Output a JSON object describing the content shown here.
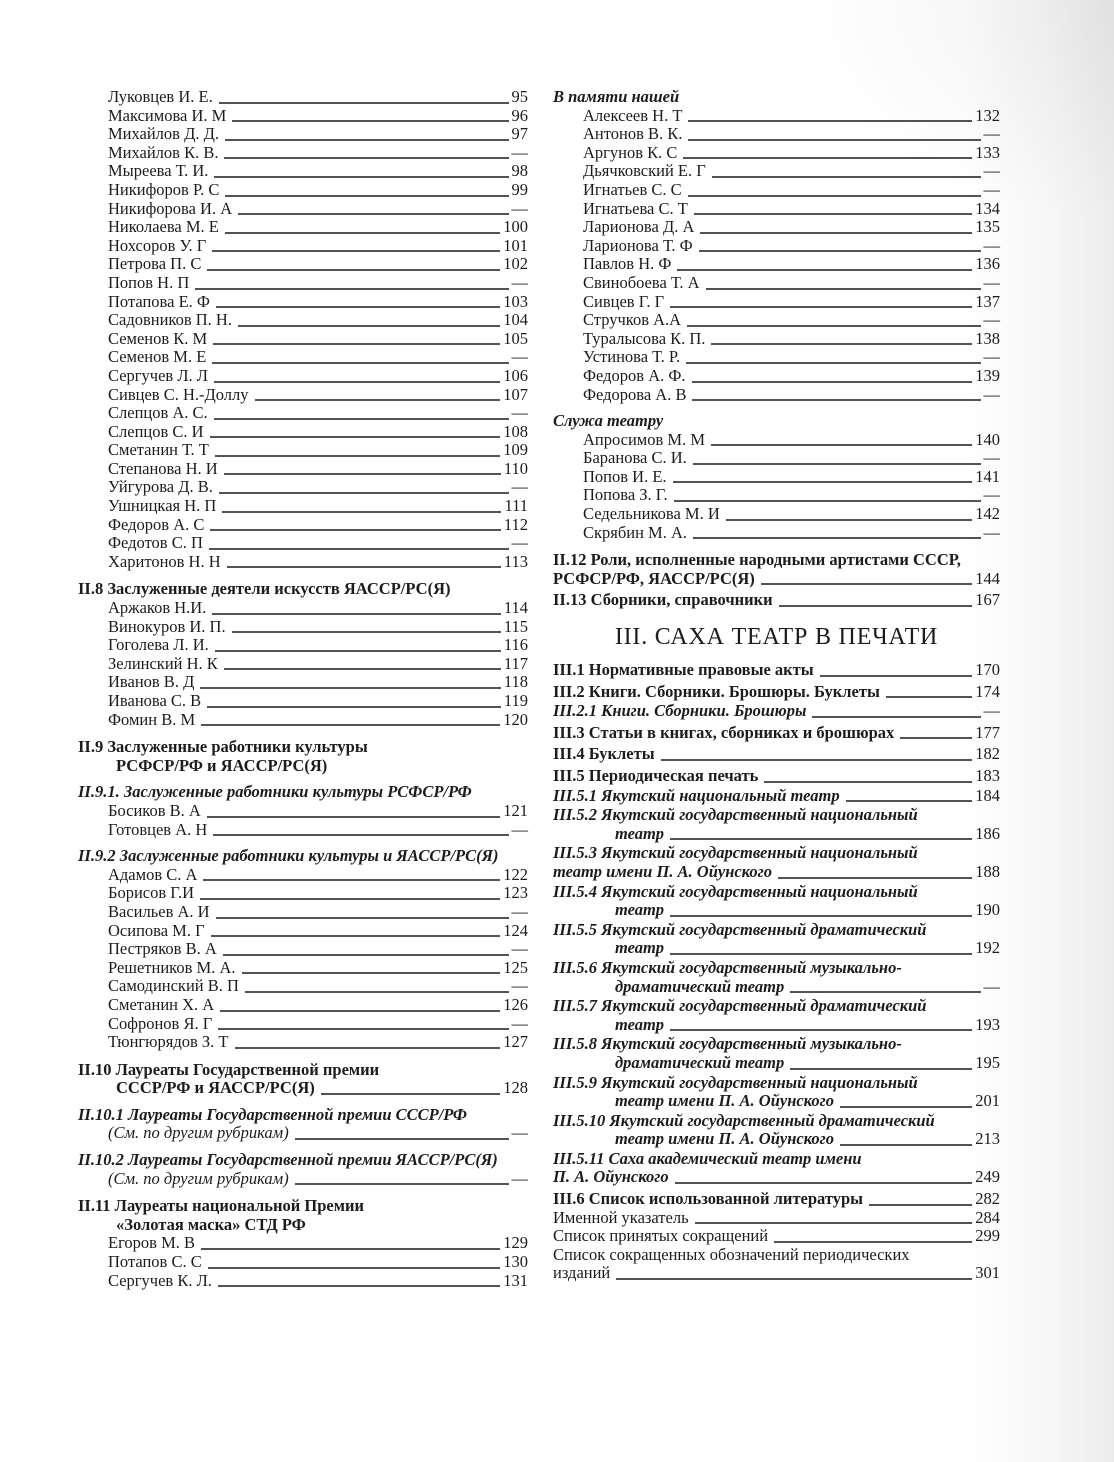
{
  "columns": {
    "left": [
      {
        "t": "Луковцев И. Е.",
        "p": "95",
        "c": "name"
      },
      {
        "t": "Максимова И. М",
        "p": "96",
        "c": "name"
      },
      {
        "t": "Михайлов Д. Д.",
        "p": "97",
        "c": "name"
      },
      {
        "t": "Михайлов К. В.",
        "p": "—",
        "c": "name"
      },
      {
        "t": "Мыреева Т. И.",
        "p": "98",
        "c": "name"
      },
      {
        "t": "Никифоров Р. С",
        "p": "99",
        "c": "name"
      },
      {
        "t": "Никифорова И. А",
        "p": "—",
        "c": "name"
      },
      {
        "t": "Николаева М. Е",
        "p": "100",
        "c": "name"
      },
      {
        "t": "Нохсоров У. Г",
        "p": "101",
        "c": "name"
      },
      {
        "t": "Петрова П. С",
        "p": "102",
        "c": "name"
      },
      {
        "t": "Попов Н. П",
        "p": "—",
        "c": "name"
      },
      {
        "t": "Потапова Е. Ф",
        "p": "103",
        "c": "name"
      },
      {
        "t": "Садовников П. Н.",
        "p": "104",
        "c": "name"
      },
      {
        "t": "Семенов К. М",
        "p": "105",
        "c": "name"
      },
      {
        "t": "Семенов М. Е",
        "p": "—",
        "c": "name"
      },
      {
        "t": "Сергучев Л. Л",
        "p": "106",
        "c": "name"
      },
      {
        "t": "Сивцев С. Н.-Доллу",
        "p": "107",
        "c": "name"
      },
      {
        "t": "Слепцов А. С.",
        "p": "—",
        "c": "name"
      },
      {
        "t": "Слепцов С. И",
        "p": "108",
        "c": "name"
      },
      {
        "t": "Сметанин Т. Т",
        "p": "109",
        "c": "name"
      },
      {
        "t": "Степанова Н. И",
        "p": "110",
        "c": "name"
      },
      {
        "t": "Уйгурова Д. В.",
        "p": "—",
        "c": "name"
      },
      {
        "t": "Ушницкая Н. П",
        "p": "111",
        "c": "name"
      },
      {
        "t": "Федоров А. С",
        "p": "112",
        "c": "name"
      },
      {
        "t": "Федотов С. П",
        "p": "—",
        "c": "name"
      },
      {
        "t": "Харитонов Н. Н",
        "p": "113",
        "c": "name"
      },
      {
        "t": "II.8 Заслуженные деятели искусств ЯАССР/РС(Я)",
        "p": null,
        "c": "heading"
      },
      {
        "t": "Аржаков Н.И.",
        "p": "114",
        "c": "name"
      },
      {
        "t": "Винокуров И. П.",
        "p": "115",
        "c": "name"
      },
      {
        "t": "Гоголева Л. И.",
        "p": "116",
        "c": "name"
      },
      {
        "t": "Зелинский Н. К",
        "p": "117",
        "c": "name"
      },
      {
        "t": "Иванов В. Д",
        "p": "118",
        "c": "name"
      },
      {
        "t": "Иванова С. В",
        "p": "119",
        "c": "name"
      },
      {
        "t": "Фомин В. М",
        "p": "120",
        "c": "name"
      },
      {
        "t": "II.9 Заслуженные работники культуры",
        "p": null,
        "c": "heading"
      },
      {
        "t": "РСФСР/РФ и ЯАССР/РС(Я)",
        "p": null,
        "c": "heading-cont-indent"
      },
      {
        "t": "II.9.1. Заслуженные работники культуры РСФСР/РФ",
        "p": null,
        "c": "heading-italic"
      },
      {
        "t": "Босиков В. А",
        "p": "121",
        "c": "name"
      },
      {
        "t": "Готовцев А. Н",
        "p": "—",
        "c": "name"
      },
      {
        "t": "II.9.2 Заслуженные работники культуры и ЯАССР/РС(Я)",
        "p": null,
        "c": "heading-italic"
      },
      {
        "t": "Адамов С. А",
        "p": "122",
        "c": "name"
      },
      {
        "t": "Борисов Г.И",
        "p": "123",
        "c": "name"
      },
      {
        "t": "Васильев А. И",
        "p": "—",
        "c": "name"
      },
      {
        "t": "Осипова М. Г",
        "p": "124",
        "c": "name"
      },
      {
        "t": "Пестряков В. А",
        "p": "—",
        "c": "name"
      },
      {
        "t": "Решетников М. А.",
        "p": "125",
        "c": "name"
      },
      {
        "t": "Самодинский В. П",
        "p": "—",
        "c": "name"
      },
      {
        "t": "Сметанин Х. А",
        "p": "126",
        "c": "name"
      },
      {
        "t": "Софронов Я. Г",
        "p": "—",
        "c": "name"
      },
      {
        "t": "Тюнгюрядов З. Т",
        "p": "127",
        "c": "name"
      },
      {
        "t": "II.10 Лауреаты Государственной премии",
        "p": null,
        "c": "heading"
      },
      {
        "t": "СССР/РФ и ЯАССР/РС(Я)",
        "p": "128",
        "c": "heading-cont-indent"
      },
      {
        "t": "II.10.1 Лауреаты Государственной премии СССР/РФ",
        "p": null,
        "c": "heading-italic"
      },
      {
        "t": "(См. по другим рубрикам)",
        "p": "—",
        "c": "see-note"
      },
      {
        "t": "II.10.2 Лауреаты Государственной премии ЯАССР/РС(Я)",
        "p": null,
        "c": "heading-italic"
      },
      {
        "t": "(См. по другим рубрикам)",
        "p": "—",
        "c": "see-note"
      },
      {
        "t": "II.11 Лауреаты национальной Премии",
        "p": null,
        "c": "heading"
      },
      {
        "t": "«Золотая маска» СТД РФ",
        "p": null,
        "c": "heading-cont-indent"
      },
      {
        "t": "Егоров М. В",
        "p": "129",
        "c": "name"
      },
      {
        "t": "Потапов С. С",
        "p": "130",
        "c": "name"
      },
      {
        "t": "Сергучев К. Л.",
        "p": "131",
        "c": "name"
      }
    ],
    "right": [
      {
        "t": "В памяти нашей",
        "p": null,
        "c": "heading-italic"
      },
      {
        "t": "Алексеев Н. Т",
        "p": "132",
        "c": "name"
      },
      {
        "t": "Антонов В. К.",
        "p": "—",
        "c": "name"
      },
      {
        "t": "Аргунов К. С",
        "p": "133",
        "c": "name"
      },
      {
        "t": "Дьячковский Е. Г",
        "p": "—",
        "c": "name"
      },
      {
        "t": "Игнатьев С. С",
        "p": "—",
        "c": "name"
      },
      {
        "t": "Игнатьева С. Т",
        "p": "134",
        "c": "name"
      },
      {
        "t": "Ларионова Д. А",
        "p": "135",
        "c": "name"
      },
      {
        "t": "Ларионова Т. Ф",
        "p": "—",
        "c": "name"
      },
      {
        "t": "Павлов Н. Ф",
        "p": "136",
        "c": "name"
      },
      {
        "t": "Свинобоева Т. А",
        "p": "—",
        "c": "name"
      },
      {
        "t": "Сивцев Г. Г",
        "p": "137",
        "c": "name"
      },
      {
        "t": "Стручков А.А",
        "p": "—",
        "c": "name"
      },
      {
        "t": "Туралысова К. П.",
        "p": "138",
        "c": "name"
      },
      {
        "t": "Устинова Т. Р.",
        "p": "—",
        "c": "name"
      },
      {
        "t": "Федоров А. Ф.",
        "p": "139",
        "c": "name"
      },
      {
        "t": "Федорова А. В",
        "p": "—",
        "c": "name"
      },
      {
        "t": "Служа театру",
        "p": null,
        "c": "heading-italic"
      },
      {
        "t": "Апросимов М. М",
        "p": "140",
        "c": "name"
      },
      {
        "t": "Баранова С. И.",
        "p": "—",
        "c": "name"
      },
      {
        "t": "Попов И. Е.",
        "p": "141",
        "c": "name"
      },
      {
        "t": "Попова З. Г.",
        "p": "—",
        "c": "name"
      },
      {
        "t": "Седельникова М. И",
        "p": "142",
        "c": "name"
      },
      {
        "t": "Скрябин М. А.",
        "p": "—",
        "c": "name"
      },
      {
        "t": "II.12 Роли, исполненные народными артистами СССР,",
        "p": null,
        "c": "heading"
      },
      {
        "t": "РСФСР/РФ, ЯАССР/РС(Я)",
        "p": "144",
        "c": "heading-cont"
      },
      {
        "t": "II.13 Сборники, справочники",
        "p": "167",
        "c": "heading-tight"
      },
      {
        "t": "III. САХА ТЕАТР В ПЕЧАТИ",
        "p": null,
        "c": "part-title"
      },
      {
        "t": "III.1 Нормативные правовые акты",
        "p": "170",
        "c": "heading-tight"
      },
      {
        "t": "III.2 Книги. Сборники. Брошюры. Буклеты",
        "p": "174",
        "c": "heading-tight"
      },
      {
        "t": "III.2.1 Книги. Сборники. Брошюры",
        "p": "—",
        "c": "heading-italic-tight"
      },
      {
        "t": "III.3 Статьи в книгах, сборниках и брошюрах",
        "p": "177",
        "c": "heading-tight"
      },
      {
        "t": "III.4 Буклеты",
        "p": "182",
        "c": "heading-tight"
      },
      {
        "t": "III.5 Периодическая печать",
        "p": "183",
        "c": "heading-tight"
      },
      {
        "t": "III.5.1 Якутский национальный театр",
        "p": "184",
        "c": "heading-italic-tight"
      },
      {
        "t": "III.5.2 Якутский государственный национальный",
        "p": null,
        "c": "heading-italic-tight"
      },
      {
        "t": "театр",
        "p": "186",
        "c": "italic-cont-indent"
      },
      {
        "t": "III.5.3 Якутский государственный национальный",
        "p": null,
        "c": "heading-italic-tight"
      },
      {
        "t": "театр имени П. А. Ойунского",
        "p": "188",
        "c": "italic-cont"
      },
      {
        "t": "III.5.4 Якутский государственный национальный",
        "p": null,
        "c": "heading-italic-tight"
      },
      {
        "t": "театр",
        "p": "190",
        "c": "italic-cont-indent"
      },
      {
        "t": "III.5.5 Якутский государственный драматический",
        "p": null,
        "c": "heading-italic-tight"
      },
      {
        "t": "театр",
        "p": "192",
        "c": "italic-cont-indent"
      },
      {
        "t": "III.5.6 Якутский государственный музыкально-",
        "p": null,
        "c": "heading-italic-tight"
      },
      {
        "t": "драматический театр",
        "p": "—",
        "c": "italic-cont-indent"
      },
      {
        "t": "III.5.7 Якутский государственный драматический",
        "p": null,
        "c": "heading-italic-tight"
      },
      {
        "t": "театр",
        "p": "193",
        "c": "italic-cont-indent"
      },
      {
        "t": "III.5.8 Якутский государственный музыкально-",
        "p": null,
        "c": "heading-italic-tight"
      },
      {
        "t": "драматический театр",
        "p": "195",
        "c": "italic-cont-indent"
      },
      {
        "t": "III.5.9 Якутский государственный национальный",
        "p": null,
        "c": "heading-italic-tight"
      },
      {
        "t": "театр имени П. А. Ойунского",
        "p": "201",
        "c": "italic-cont-indent"
      },
      {
        "t": "III.5.10 Якутский государственный драматический",
        "p": null,
        "c": "heading-italic-tight"
      },
      {
        "t": "театр имени П. А. Ойунского",
        "p": "213",
        "c": "italic-cont-indent"
      },
      {
        "t": "III.5.11 Саха академический театр имени",
        "p": null,
        "c": "heading-italic-tight"
      },
      {
        "t": "П. А. Ойунского",
        "p": "249",
        "c": "italic-cont"
      },
      {
        "t": "III.6 Список использованной литературы",
        "p": "282",
        "c": "heading-tight"
      },
      {
        "t": "Именной указатель",
        "p": "284",
        "c": "plain"
      },
      {
        "t": "Список принятых сокращений",
        "p": "299",
        "c": "plain"
      },
      {
        "t": "Список сокращенных обозначений периодических",
        "p": null,
        "c": "plain"
      },
      {
        "t": "изданий",
        "p": "301",
        "c": "plain"
      }
    ]
  }
}
